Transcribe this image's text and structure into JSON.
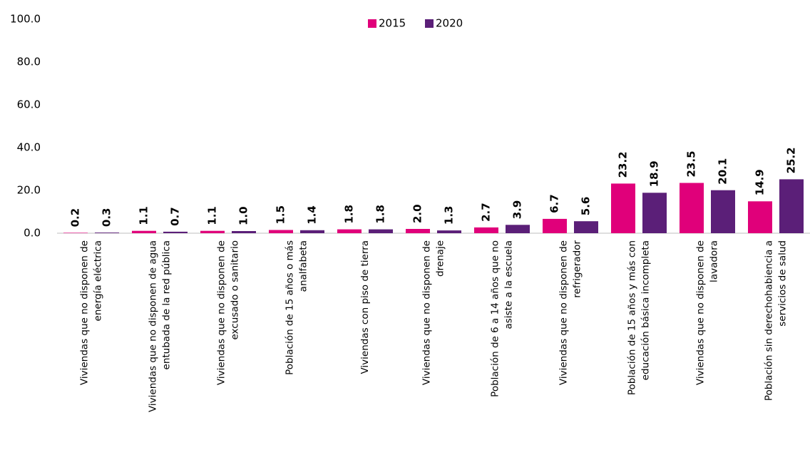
{
  "chart_data": {
    "type": "bar",
    "categories": [
      [
        "Viviendas que no disponen de",
        "energía eléctrica"
      ],
      [
        "Viviendas que no disponen de agua",
        "entubada de la red pública"
      ],
      [
        "Viviendas que no disponen de",
        "excusado o sanitario"
      ],
      [
        "Población de 15 años o más",
        "analfabeta"
      ],
      [
        "Viviendas con piso de tierra"
      ],
      [
        "Viviendas que no disponen de",
        "drenaje"
      ],
      [
        "Población de 6 a 14 años que no",
        "asiste a la escuela"
      ],
      [
        "Viviendas que no disponen de",
        "refrigerador"
      ],
      [
        "Población de 15 años y más con",
        "educación básica incompleta"
      ],
      [
        "Viviendas que no disponen de",
        "lavadora"
      ],
      [
        "Población sin derechohabiencia a",
        "servicios de salud"
      ]
    ],
    "series": [
      {
        "name": "2015",
        "color": "#e0007a",
        "values": [
          0.2,
          1.1,
          1.1,
          1.5,
          1.8,
          2.0,
          2.7,
          6.7,
          23.2,
          23.5,
          14.9
        ],
        "value_labels": [
          "0.2",
          "1.1",
          "1.1",
          "1.5",
          "1.8",
          "2.0",
          "2.7",
          "6.7",
          "23.2",
          "23.5",
          "14.9"
        ]
      },
      {
        "name": "2020",
        "color": "#5b1f78",
        "values": [
          0.3,
          0.7,
          1.0,
          1.4,
          1.8,
          1.3,
          3.9,
          5.6,
          18.9,
          20.1,
          25.2
        ],
        "value_labels": [
          "0.3",
          "0.7",
          "1.0",
          "1.4",
          "1.8",
          "1.3",
          "3.9",
          "5.6",
          "18.9",
          "20.1",
          "25.2"
        ]
      }
    ],
    "ylim": [
      0,
      100
    ],
    "yticks": [
      {
        "value": 0,
        "label": "0.0"
      },
      {
        "value": 20,
        "label": "20.0"
      },
      {
        "value": 40,
        "label": "40.0"
      },
      {
        "value": 60,
        "label": "60.0"
      },
      {
        "value": 80,
        "label": "80.0"
      },
      {
        "value": 100,
        "label": "100.0"
      }
    ],
    "legend": "top"
  }
}
